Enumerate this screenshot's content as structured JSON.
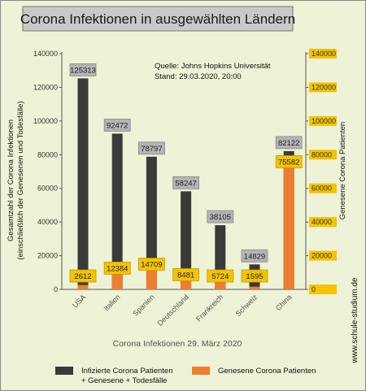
{
  "chart_data": {
    "type": "bar",
    "title": "Corona Infektionen in ausgewählten Ländern",
    "source_line1": "Quelle: Johns Hopkins Universität",
    "source_line2": "Stand: 29.03.2020, 20:00",
    "categories": [
      "USA",
      "Italien",
      "Spanien",
      "Deutschland",
      "Frankreich",
      "Schweiz",
      "China"
    ],
    "series": [
      {
        "name": "Infizierte Corona Patienten + Genesene + Todesfälle",
        "legend_line1": "Infizierte Corona Patienten",
        "legend_line2": "+ Genesene + Todesfälle",
        "color": "#3a3a3a",
        "label_fill": "#b4b4b4",
        "values": [
          125313,
          92472,
          78797,
          58247,
          38105,
          14829,
          82122
        ]
      },
      {
        "name": "Genesene Corona Patienten",
        "legend_line1": "Genesene Corona Patienten",
        "color": "#ed7d31",
        "label_fill": "#f3c400",
        "values": [
          2612,
          12384,
          14709,
          8481,
          5724,
          1595,
          75582
        ]
      }
    ],
    "ylabel_line1": "Gesamtzahl der Corona Infektionen",
    "ylabel_line2": "(einschließlich der Genesenen und Todesfälle)",
    "y2label": "Genesene Corona Patienten",
    "xlabel": "Corona Infektionen 29. März 2020",
    "ylim": [
      0,
      140000
    ],
    "yticks": [
      "0",
      "20000",
      "40000",
      "60000",
      "80000",
      "100000",
      "120000",
      "140000"
    ],
    "y2ticks": [
      "0",
      "20000",
      "40000",
      "60000",
      "80000",
      "100000",
      "120000",
      "140000"
    ],
    "grid": false,
    "legend_position": "bottom"
  },
  "watermark": "www.schule-studium.de",
  "colors": {
    "background": "#eef2d6",
    "title_box": "#c9c9c9",
    "right_tick_fill": "#f3c400"
  }
}
